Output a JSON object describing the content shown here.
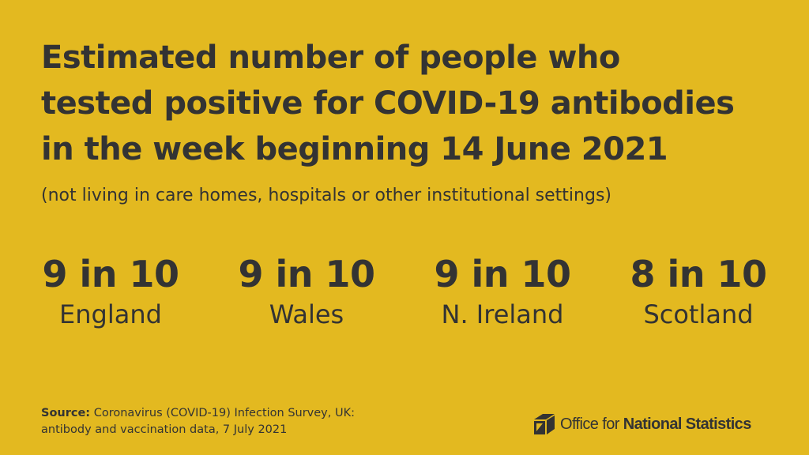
{
  "headline": {
    "line1": "Estimated number of people who",
    "line2": "tested positive for COVID-19 antibodies",
    "line3": "in the week beginning 14 June 2021"
  },
  "subtitle": "(not living in care homes, hospitals or other institutional settings)",
  "stats": [
    {
      "value": "9 in 10",
      "label": "England"
    },
    {
      "value": "9 in 10",
      "label": "Wales"
    },
    {
      "value": "9 in 10",
      "label": "N. Ireland"
    },
    {
      "value": "8 in 10",
      "label": "Scotland"
    }
  ],
  "source": {
    "prefix": "Source:",
    "line1": "Coronavirus (COVID-19) Infection Survey, UK:",
    "line2": "antibody and vaccination data, 7 July 2021"
  },
  "logo": {
    "regular": "Office for ",
    "bold": "National Statistics"
  },
  "colors": {
    "background": "#e3b920",
    "text": "#333333"
  }
}
